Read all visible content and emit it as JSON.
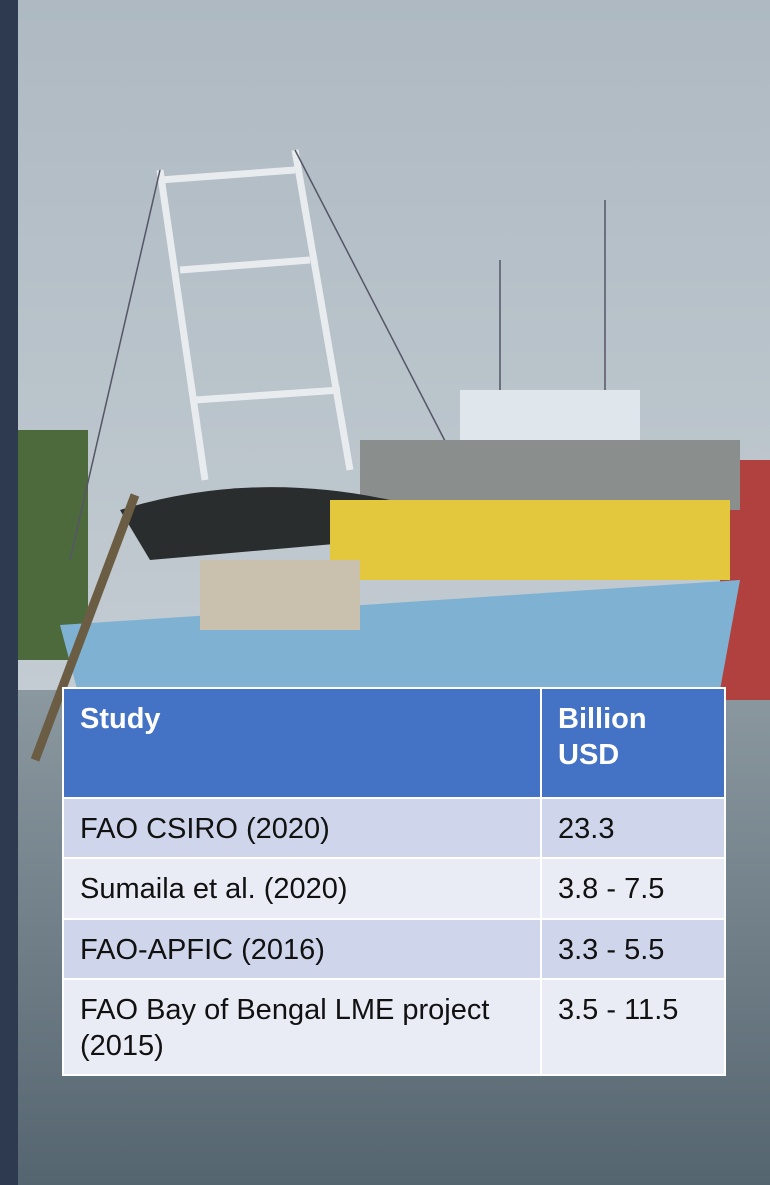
{
  "table": {
    "header": [
      "Study",
      "Billion USD"
    ],
    "rows": [
      [
        "FAO CSIRO (2020)",
        "23.3"
      ],
      [
        "Sumaila et al. (2020)",
        "3.8 - 7.5"
      ],
      [
        "FAO-APFIC (2016)",
        "3.3 - 5.5"
      ],
      [
        "FAO Bay of Bengal LME project (2015)",
        "3.5 - 11.5"
      ]
    ]
  }
}
